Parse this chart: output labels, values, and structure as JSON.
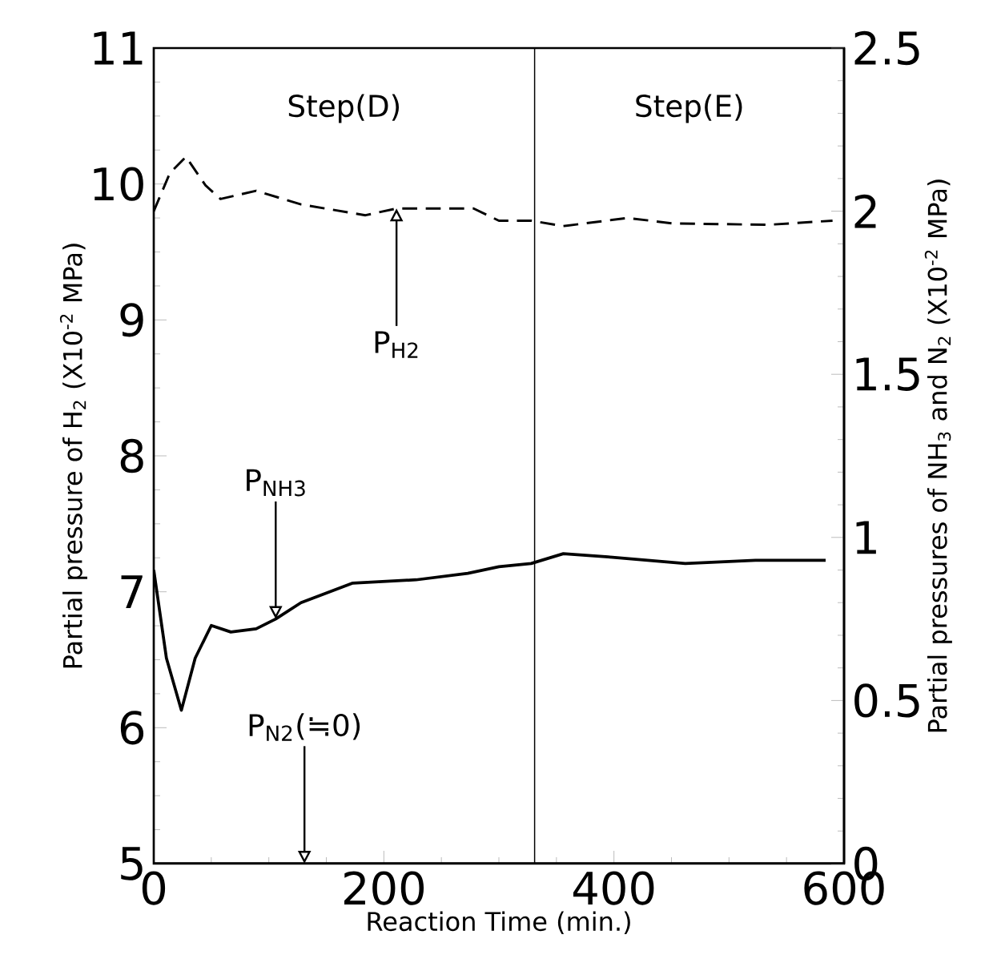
{
  "chart_data": {
    "type": "line",
    "xlabel": "Reaction Time (min.)",
    "ylabel": "Partial pressure of H$_{2}$ (X10$^{-2}$ MPa)",
    "y2label": "Partial pressures of NH$_{3}$ and N$_{2}$ (X10$^{-2}$ MPa)",
    "xlim": [
      0,
      600
    ],
    "xticks": [
      0,
      200,
      400,
      600
    ],
    "ylim": [
      5,
      11
    ],
    "yticks": [
      5,
      6,
      7,
      8,
      9,
      10,
      11
    ],
    "y2lim": [
      0,
      2.5
    ],
    "y2ticks": [
      0,
      0.5,
      1,
      1.5,
      2,
      2.5
    ],
    "series": [
      {
        "color": "#000000",
        "line_style": "dashed",
        "x": [
          0,
          14,
          28,
          45,
          58,
          89,
          128,
          184,
          211,
          278,
          300,
          328,
          356,
          412,
          451,
          534,
          590
        ],
        "values": [
          9.8,
          10.08,
          10.2,
          9.99,
          9.89,
          9.95,
          9.85,
          9.77,
          9.82,
          9.82,
          9.73,
          9.73,
          9.69,
          9.75,
          9.71,
          9.7,
          9.73
        ]
      },
      {
        "color": "#000000",
        "line_style": "solid",
        "axis": "y2",
        "x": [
          0,
          11,
          24,
          36,
          50,
          67,
          89,
          106,
          128,
          173,
          228,
          273,
          300,
          328,
          356,
          395,
          462,
          523,
          584
        ],
        "values": [
          0.9,
          0.63,
          0.47,
          0.63,
          0.73,
          0.71,
          0.72,
          0.75,
          0.8,
          0.86,
          0.87,
          0.89,
          0.91,
          0.92,
          0.95,
          0.94,
          0.92,
          0.93,
          0.93
        ]
      },
      {
        "color": "#000000",
        "line_style": "solid",
        "axis": "y2",
        "x": [
          0,
          600
        ],
        "values": [
          0,
          0
        ]
      }
    ],
    "ref_lines": [
      {
        "axis": "x",
        "value": 331,
        "color": "#000000"
      }
    ],
    "annotations": [
      "Step(D)",
      "Step(E)",
      {
        "text": "P$_{H2}$",
        "x": 211,
        "y": 9.82
      },
      {
        "text": "P$_{NH3}$",
        "x": 106,
        "y": 6.8
      },
      {
        "text": "P$_{N2}$(≒0)",
        "x": 131,
        "y": 5
      }
    ]
  }
}
